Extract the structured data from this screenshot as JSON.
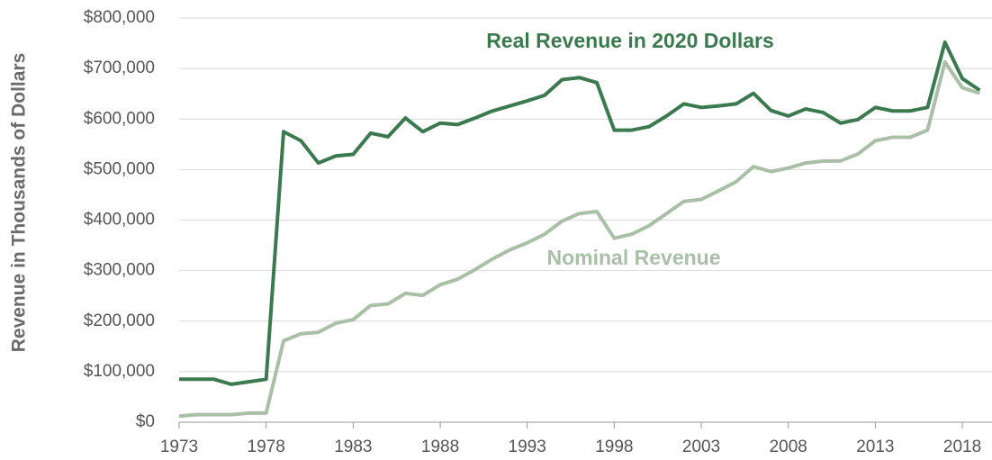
{
  "chart_data": {
    "type": "line",
    "ylabel": "Revenue in Thousands of Dollars",
    "x": [
      1973,
      1974,
      1975,
      1976,
      1977,
      1978,
      1979,
      1980,
      1981,
      1982,
      1983,
      1984,
      1985,
      1986,
      1987,
      1988,
      1989,
      1990,
      1991,
      1992,
      1993,
      1994,
      1995,
      1996,
      1997,
      1998,
      1999,
      2000,
      2001,
      2002,
      2003,
      2004,
      2005,
      2006,
      2007,
      2008,
      2009,
      2010,
      2011,
      2012,
      2013,
      2014,
      2015,
      2016,
      2017,
      2018,
      2019
    ],
    "series": [
      {
        "name": "Real Revenue in 2020 Dollars",
        "color": "#3b7a4f",
        "values": [
          85000,
          85000,
          85000,
          75000,
          80000,
          85000,
          575000,
          557000,
          513000,
          527000,
          530000,
          572000,
          565000,
          602000,
          575000,
          592000,
          589000,
          602000,
          616000,
          626000,
          636000,
          647000,
          678000,
          682000,
          672000,
          578000,
          578000,
          585000,
          606000,
          630000,
          623000,
          626000,
          630000,
          651000,
          617000,
          606000,
          620000,
          613000,
          592000,
          599000,
          623000,
          616000,
          616000,
          623000,
          752000,
          680000,
          657000
        ]
      },
      {
        "name": "Nominal Revenue",
        "color": "#a9c0a7",
        "values": [
          12000,
          15000,
          15000,
          15000,
          18000,
          18000,
          161000,
          175000,
          178000,
          196000,
          203000,
          231000,
          234000,
          255000,
          251000,
          272000,
          283000,
          302000,
          323000,
          341000,
          355000,
          372000,
          398000,
          413000,
          417000,
          364000,
          372000,
          389000,
          413000,
          437000,
          441000,
          458000,
          476000,
          506000,
          496000,
          503000,
          513000,
          517000,
          517000,
          531000,
          557000,
          564000,
          564000,
          578000,
          713000,
          662000,
          651000
        ]
      }
    ],
    "xlim": [
      1973,
      2019.6
    ],
    "xticks": [
      1973,
      1978,
      1983,
      1988,
      1993,
      1998,
      2003,
      2008,
      2013,
      2018
    ],
    "ylim": [
      0,
      800000
    ],
    "yticks": [
      {
        "value": 0,
        "label": "$0"
      },
      {
        "value": 100000,
        "label": "$100,000"
      },
      {
        "value": 200000,
        "label": "$200,000"
      },
      {
        "value": 300000,
        "label": "$300,000"
      },
      {
        "value": 400000,
        "label": "$400,000"
      },
      {
        "value": 500000,
        "label": "$500,000"
      },
      {
        "value": 600000,
        "label": "$600,000"
      },
      {
        "value": 700000,
        "label": "$700,000"
      },
      {
        "value": 800000,
        "label": "$800,000"
      }
    ],
    "grid": true
  }
}
